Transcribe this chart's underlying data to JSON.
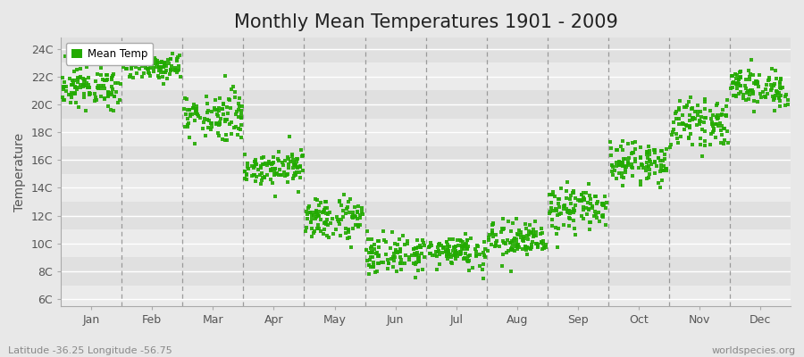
{
  "title": "Monthly Mean Temperatures 1901 - 2009",
  "ylabel": "Temperature",
  "bottom_left_label": "Latitude -36.25 Longitude -56.75",
  "bottom_right_label": "worldspecies.org",
  "legend_label": "Mean Temp",
  "marker_color": "#22aa00",
  "background_color": "#e8e8e8",
  "plot_bg_color": "#e8e8e8",
  "ytick_labels": [
    "6C",
    "8C",
    "10C",
    "12C",
    "14C",
    "16C",
    "18C",
    "20C",
    "22C",
    "24C"
  ],
  "ytick_values": [
    6,
    8,
    10,
    12,
    14,
    16,
    18,
    20,
    22,
    24
  ],
  "ylim": [
    5.5,
    24.8
  ],
  "months": [
    "Jan",
    "Feb",
    "Mar",
    "Apr",
    "May",
    "Jun",
    "Jul",
    "Aug",
    "Sep",
    "Oct",
    "Nov",
    "Dec"
  ],
  "title_fontsize": 15,
  "axis_label_fontsize": 10,
  "tick_label_fontsize": 9,
  "month_mean_temps": [
    21.2,
    22.8,
    19.2,
    15.5,
    11.8,
    9.2,
    9.5,
    10.2,
    12.5,
    15.8,
    18.7,
    21.2
  ],
  "month_temp_std": [
    0.7,
    0.5,
    0.9,
    0.6,
    0.8,
    0.7,
    0.6,
    0.7,
    0.8,
    0.7,
    0.8,
    0.7
  ],
  "month_temp_range": [
    2.5,
    1.8,
    3.5,
    2.2,
    3.0,
    2.5,
    2.5,
    2.5,
    2.8,
    2.5,
    2.5,
    2.5
  ],
  "n_years": 109,
  "band_colors": [
    "#ebebeb",
    "#e0e0e0"
  ],
  "grid_line_color": "#ffffff"
}
